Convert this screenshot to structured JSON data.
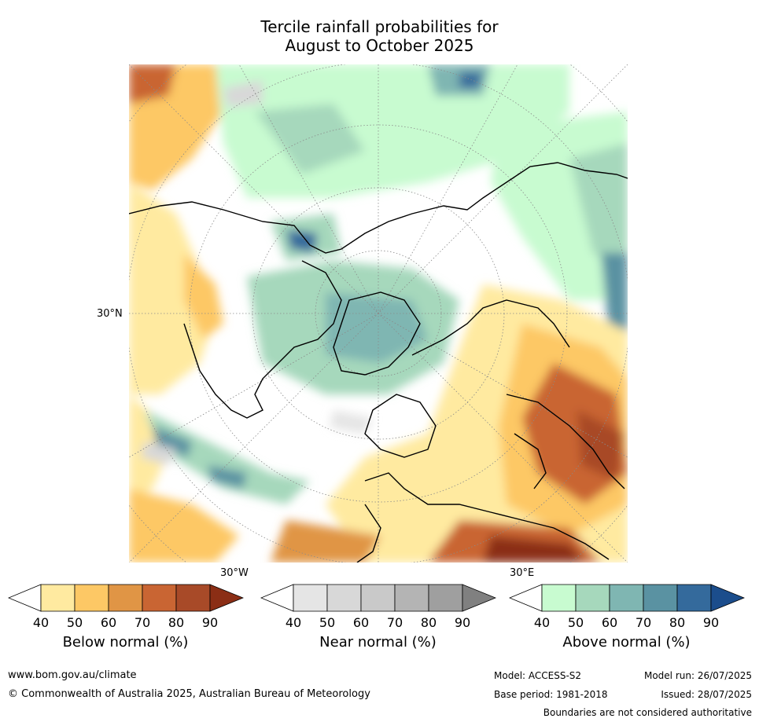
{
  "title_line1": "Tercile rainfall probabilities for",
  "title_line2": "August to October 2025",
  "map": {
    "lat_label": "30°N",
    "lon_label_left": "30°W",
    "lon_label_right": "30°E"
  },
  "colorbars": [
    {
      "title": "Below normal (%)",
      "ticks": [
        "40",
        "50",
        "60",
        "70",
        "80",
        "90"
      ],
      "colors": [
        "#ffffff",
        "#ffeaa0",
        "#fdc865",
        "#e09545",
        "#c96533",
        "#a84a28",
        "#8b2e15"
      ]
    },
    {
      "title": "Near normal (%)",
      "ticks": [
        "40",
        "50",
        "60",
        "70",
        "80",
        "90"
      ],
      "colors": [
        "#ffffff",
        "#e5e5e5",
        "#d8d8d8",
        "#c9c9c9",
        "#b4b4b4",
        "#9f9f9f",
        "#808080"
      ]
    },
    {
      "title": "Above normal (%)",
      "ticks": [
        "40",
        "50",
        "60",
        "70",
        "80",
        "90"
      ],
      "colors": [
        "#ffffff",
        "#c8fbd0",
        "#a6d8bc",
        "#7fb6b2",
        "#5a92a2",
        "#346a9c",
        "#1b4d8c"
      ]
    }
  ],
  "footer": {
    "website": "www.bom.gov.au/climate",
    "copyright": "© Commonwealth of Australia 2025, Australian Bureau of Meteorology",
    "model": "Model: ACCESS-S2",
    "base_period": "Base period: 1981-2018",
    "model_run": "Model run: 26/07/2025",
    "issued": "Issued: 28/07/2025",
    "disclaimer": "Boundaries are not considered authoritative"
  }
}
